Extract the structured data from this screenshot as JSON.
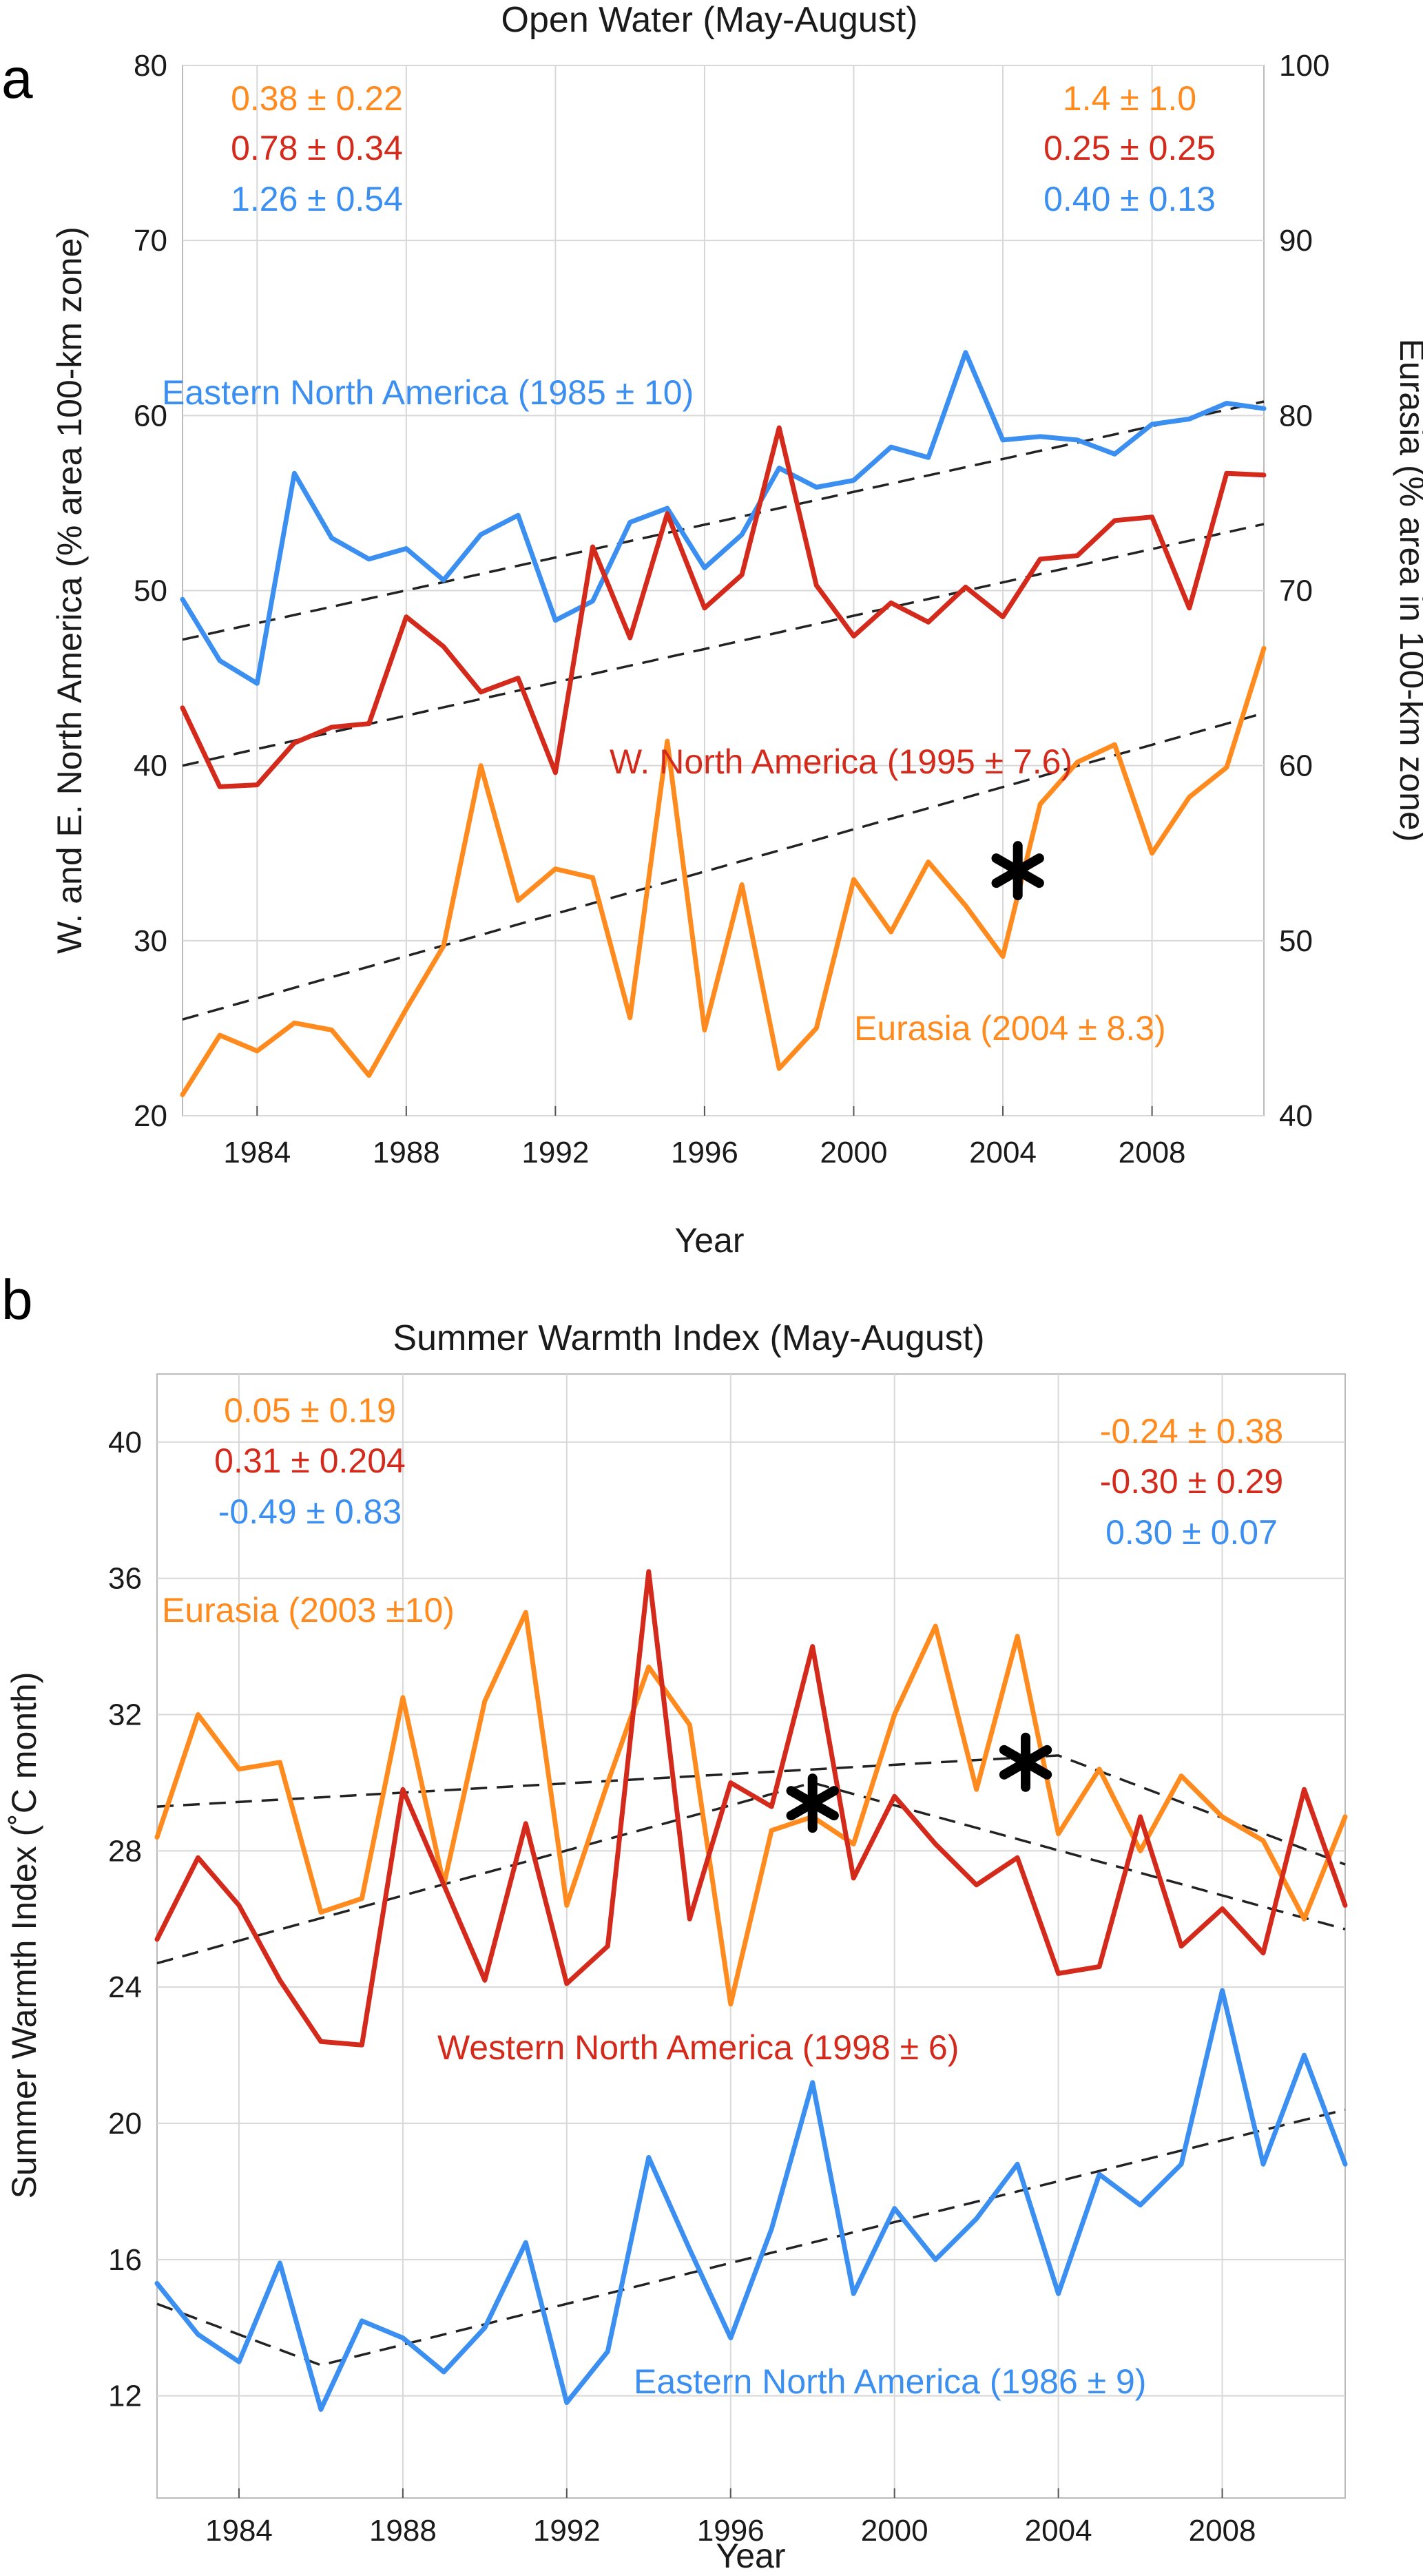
{
  "chart_data": [
    {
      "type": "line",
      "panel_label": "a",
      "title": "Open Water (May-August)",
      "xlabel": "Year",
      "ylabel": "W. and E. North America  (% area 100-km zone)",
      "ylabel2": "Eurasia (% area in 100-km zone)",
      "xlim": [
        1982,
        2011
      ],
      "ylim": [
        20,
        80
      ],
      "ylim2": [
        40,
        100
      ],
      "x_ticks": [
        1984,
        1988,
        1992,
        1996,
        2000,
        2004,
        2008
      ],
      "y_ticks": [
        20,
        30,
        40,
        50,
        60,
        70,
        80
      ],
      "y2_ticks": [
        40,
        50,
        60,
        70,
        80,
        90,
        100
      ],
      "grid": true,
      "colors": {
        "eurasia": "#ff8a1e",
        "western": "#d42a1c",
        "eastern": "#3b8ff0",
        "trend": "#222222",
        "star": "#000000"
      },
      "x": [
        1982,
        1983,
        1984,
        1985,
        1986,
        1987,
        1988,
        1989,
        1990,
        1991,
        1992,
        1993,
        1994,
        1995,
        1996,
        1997,
        1998,
        1999,
        2000,
        2001,
        2002,
        2003,
        2004,
        2005,
        2006,
        2007,
        2008,
        2009,
        2010,
        2011
      ],
      "series": [
        {
          "name": "Eastern North America (1985 ± 10)",
          "key": "eastern",
          "axis": "left",
          "values": [
            49.5,
            46,
            44.7,
            56.7,
            53,
            51.8,
            52.4,
            50.6,
            53.2,
            54.3,
            48.3,
            49.4,
            53.9,
            54.7,
            51.3,
            53.2,
            57,
            55.9,
            56.3,
            58.2,
            57.6,
            63.6,
            58.6,
            58.8,
            58.6,
            57.8,
            59.5,
            59.8,
            60.7,
            60.4
          ],
          "trend": [
            [
              1982,
              47.2
            ],
            [
              2011,
              60.8
            ]
          ]
        },
        {
          "name": "W. North America (1995 ± 7.6)",
          "key": "western",
          "axis": "left",
          "values": [
            43.3,
            38.8,
            38.9,
            41.3,
            42.2,
            42.4,
            48.5,
            46.8,
            44.2,
            45,
            39.6,
            52.5,
            47.3,
            54.4,
            49,
            50.9,
            59.3,
            50.3,
            47.4,
            49.3,
            48.2,
            50.2,
            48.5,
            51.8,
            52,
            54,
            54.2,
            49,
            56.7,
            56.6
          ],
          "trend": [
            [
              1982,
              40
            ],
            [
              2011,
              53.8
            ]
          ]
        },
        {
          "name": "Eurasia (2004 ± 8.3)",
          "key": "eurasia",
          "axis": "right",
          "values": [
            41.2,
            44.6,
            43.7,
            45.3,
            44.9,
            42.3,
            46.1,
            49.7,
            60,
            52.3,
            54.1,
            53.6,
            45.6,
            61.4,
            44.9,
            53.2,
            42.7,
            45,
            53.5,
            50.5,
            54.5,
            52,
            49.1,
            57.8,
            60.2,
            61.2,
            55,
            58.2,
            59.9,
            66.7
          ],
          "trend": [
            [
              1982,
              45.5
            ],
            [
              2011,
              63
            ]
          ]
        }
      ],
      "breakpoint_star": {
        "x": 2004.4,
        "y": 54,
        "axis": "right"
      },
      "stats_left": [
        "0.38  ± 0.22",
        "0.78 ± 0.34",
        "1.26 ± 0.54"
      ],
      "stats_right": [
        "1.4  ± 1.0",
        "0.25 ± 0.25",
        "0.40 ± 0.13"
      ]
    },
    {
      "type": "line",
      "panel_label": "b",
      "title": "Summer Warmth Index (May-August)",
      "xlabel": "Year",
      "ylabel": "Summer Warmth Index (˚C month)",
      "xlim": [
        1982,
        2011
      ],
      "ylim": [
        9,
        42
      ],
      "x_ticks": [
        1984,
        1988,
        1992,
        1996,
        2000,
        2004,
        2008
      ],
      "y_ticks": [
        12,
        16,
        20,
        24,
        28,
        32,
        36,
        40
      ],
      "grid": true,
      "colors": {
        "eurasia": "#ff8a1e",
        "western": "#d42a1c",
        "eastern": "#3b8ff0",
        "trend": "#222222",
        "star": "#000000"
      },
      "x": [
        1982,
        1983,
        1984,
        1985,
        1986,
        1987,
        1988,
        1989,
        1990,
        1991,
        1992,
        1993,
        1994,
        1995,
        1996,
        1997,
        1998,
        1999,
        2000,
        2001,
        2002,
        2003,
        2004,
        2005,
        2006,
        2007,
        2008,
        2009,
        2010,
        2011
      ],
      "series": [
        {
          "name": "Eurasia (2003 ±10)",
          "key": "eurasia",
          "values": [
            28.4,
            32,
            30.4,
            30.6,
            26.2,
            26.6,
            32.5,
            27,
            32.4,
            35,
            26.4,
            30,
            33.4,
            31.7,
            23.5,
            28.6,
            29,
            28.2,
            32,
            34.6,
            29.8,
            34.3,
            28.5,
            30.4,
            28,
            30.2,
            29,
            28.3,
            26,
            29
          ],
          "trend": [
            [
              1982,
              29.3
            ],
            [
              2004,
              30.8
            ],
            [
              2011,
              27.6
            ]
          ]
        },
        {
          "name": "Western North America (1998 ± 6)",
          "key": "western",
          "values": [
            25.4,
            27.8,
            26.4,
            24.2,
            22.4,
            22.3,
            29.8,
            27,
            24.2,
            28.8,
            24.1,
            25.2,
            36.2,
            26,
            30,
            29.3,
            34,
            27.2,
            29.6,
            28.2,
            27,
            27.8,
            24.4,
            24.6,
            29,
            25.2,
            26.3,
            25,
            29.8,
            26.4
          ],
          "trend": [
            [
              1982,
              24.7
            ],
            [
              1998,
              30
            ],
            [
              2011,
              25.7
            ]
          ]
        },
        {
          "name": "Eastern North America (1986 ± 9)",
          "key": "eastern",
          "values": [
            15.3,
            13.8,
            13,
            15.9,
            11.6,
            14.2,
            13.7,
            12.7,
            14,
            16.5,
            11.8,
            13.3,
            19,
            16.3,
            13.7,
            16.9,
            21.2,
            15,
            17.5,
            16,
            17.2,
            18.8,
            15,
            18.5,
            17.6,
            18.8,
            23.9,
            18.8,
            22,
            18.8
          ],
          "trend": [
            [
              1982,
              14.7
            ],
            [
              1986,
              12.9
            ],
            [
              2011,
              20.4
            ]
          ]
        }
      ],
      "breakpoint_stars": [
        {
          "x": 1998,
          "y": 29.4
        },
        {
          "x": 2003.2,
          "y": 30.6
        }
      ],
      "stats_left": [
        "0.05  ± 0.19",
        "0.31 ± 0.204",
        "-0.49 ± 0.83"
      ],
      "stats_right": [
        "-0.24  ± 0.38",
        "-0.30 ± 0.29",
        "0.30 ± 0.07"
      ]
    }
  ]
}
